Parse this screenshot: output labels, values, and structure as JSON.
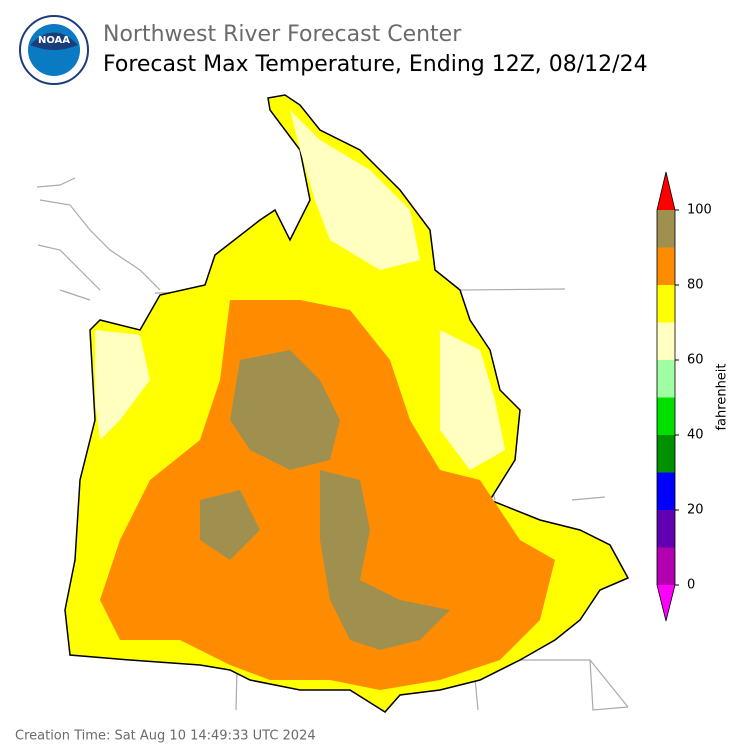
{
  "header": {
    "title": "Northwest River Forecast Center",
    "subtitle": "Forecast Max Temperature, Ending 12Z, 08/12/24",
    "logo_text": "NOAA"
  },
  "colorbar": {
    "label": "fahrenheit",
    "bounds": [
      0,
      10,
      20,
      30,
      40,
      50,
      60,
      70,
      80,
      90,
      100
    ],
    "colors": [
      "#b000b0",
      "#6000b0",
      "#0000ff",
      "#009000",
      "#00e000",
      "#a0ffa0",
      "#ffffc0",
      "#ffff00",
      "#ff8c00",
      "#a0904f"
    ],
    "under_color": "#ff00ff",
    "over_color": "#ff0000",
    "ticks": [
      0,
      20,
      40,
      60,
      80,
      100
    ]
  },
  "footer": {
    "creation_time": "Creation Time: Sat Aug 10 14:49:33 UTC 2024"
  }
}
